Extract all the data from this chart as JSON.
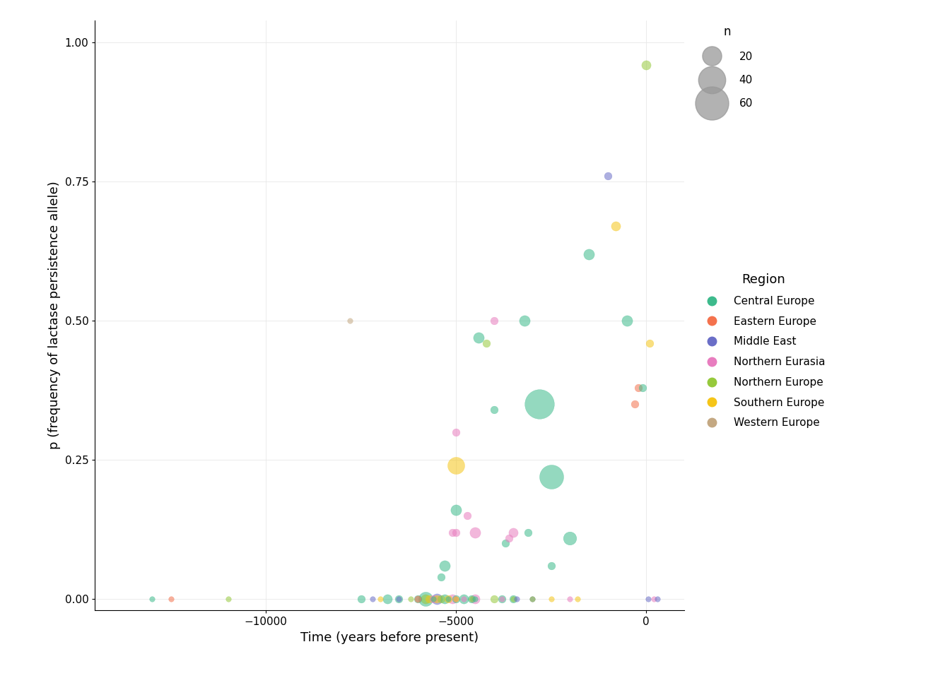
{
  "title": "",
  "xlabel": "Time (years before present)",
  "ylabel": "p (frequency of lactase persistence allele)",
  "xlim": [
    -14500,
    1000
  ],
  "ylim": [
    -0.02,
    1.04
  ],
  "xticks": [
    -10000,
    -5000,
    0
  ],
  "yticks": [
    0.0,
    0.25,
    0.5,
    0.75,
    1.0
  ],
  "regions": {
    "Central Europe": "#3dba8c",
    "Eastern Europe": "#f4724d",
    "Middle East": "#6a6ec7",
    "Northern Eurasia": "#e87dbf",
    "Northern Europe": "#96c93c",
    "Southern Europe": "#f5c518",
    "Western Europe": "#c4a882"
  },
  "points": [
    {
      "time": -13000,
      "p": 0.0,
      "n": 2,
      "region": "Central Europe"
    },
    {
      "time": -12500,
      "p": 0.0,
      "n": 2,
      "region": "Eastern Europe"
    },
    {
      "time": -11000,
      "p": 0.0,
      "n": 2,
      "region": "Northern Europe"
    },
    {
      "time": -7800,
      "p": 0.5,
      "n": 2,
      "region": "Western Europe"
    },
    {
      "time": -7500,
      "p": 0.0,
      "n": 4,
      "region": "Central Europe"
    },
    {
      "time": -7200,
      "p": 0.0,
      "n": 2,
      "region": "Middle East"
    },
    {
      "time": -7000,
      "p": 0.0,
      "n": 2,
      "region": "Southern Europe"
    },
    {
      "time": -6800,
      "p": 0.0,
      "n": 6,
      "region": "Central Europe"
    },
    {
      "time": -6500,
      "p": 0.0,
      "n": 4,
      "region": "Central Europe"
    },
    {
      "time": -6500,
      "p": 0.0,
      "n": 2,
      "region": "Middle East"
    },
    {
      "time": -6200,
      "p": 0.0,
      "n": 2,
      "region": "Northern Europe"
    },
    {
      "time": -6000,
      "p": 0.0,
      "n": 4,
      "region": "Central Europe"
    },
    {
      "time": -6000,
      "p": 0.0,
      "n": 3,
      "region": "Eastern Europe"
    },
    {
      "time": -5800,
      "p": 0.0,
      "n": 14,
      "region": "Central Europe"
    },
    {
      "time": -5800,
      "p": 0.0,
      "n": 6,
      "region": "Northern Europe"
    },
    {
      "time": -5700,
      "p": 0.0,
      "n": 4,
      "region": "Southern Europe"
    },
    {
      "time": -5600,
      "p": 0.0,
      "n": 4,
      "region": "Northern Eurasia"
    },
    {
      "time": -5600,
      "p": 0.0,
      "n": 2,
      "region": "Central Europe"
    },
    {
      "time": -5500,
      "p": 0.0,
      "n": 8,
      "region": "Middle East"
    },
    {
      "time": -5500,
      "p": 0.0,
      "n": 4,
      "region": "Southern Europe"
    },
    {
      "time": -5400,
      "p": 0.04,
      "n": 4,
      "region": "Central Europe"
    },
    {
      "time": -5400,
      "p": 0.0,
      "n": 4,
      "region": "Northern Europe"
    },
    {
      "time": -5300,
      "p": 0.0,
      "n": 6,
      "region": "Central Europe"
    },
    {
      "time": -5300,
      "p": 0.06,
      "n": 8,
      "region": "Central Europe"
    },
    {
      "time": -5200,
      "p": 0.0,
      "n": 4,
      "region": "Southern Europe"
    },
    {
      "time": -5200,
      "p": 0.0,
      "n": 2,
      "region": "Central Europe"
    },
    {
      "time": -5100,
      "p": 0.12,
      "n": 4,
      "region": "Northern Eurasia"
    },
    {
      "time": -5100,
      "p": 0.0,
      "n": 6,
      "region": "Northern Eurasia"
    },
    {
      "time": -5000,
      "p": 0.3,
      "n": 4,
      "region": "Northern Eurasia"
    },
    {
      "time": -5000,
      "p": 0.12,
      "n": 4,
      "region": "Northern Eurasia"
    },
    {
      "time": -5000,
      "p": 0.16,
      "n": 8,
      "region": "Central Europe"
    },
    {
      "time": -5000,
      "p": 0.0,
      "n": 4,
      "region": "Central Europe"
    },
    {
      "time": -5000,
      "p": 0.24,
      "n": 20,
      "region": "Southern Europe"
    },
    {
      "time": -5000,
      "p": 0.0,
      "n": 2,
      "region": "Northern Eurasia"
    },
    {
      "time": -5000,
      "p": 0.0,
      "n": 2,
      "region": "Southern Europe"
    },
    {
      "time": -4800,
      "p": 0.0,
      "n": 6,
      "region": "Central Europe"
    },
    {
      "time": -4800,
      "p": 0.0,
      "n": 2,
      "region": "Northern Eurasia"
    },
    {
      "time": -4700,
      "p": 0.15,
      "n": 4,
      "region": "Northern Eurasia"
    },
    {
      "time": -4600,
      "p": 0.0,
      "n": 4,
      "region": "Central Europe"
    },
    {
      "time": -4600,
      "p": 0.0,
      "n": 2,
      "region": "Northern Europe"
    },
    {
      "time": -4500,
      "p": 0.0,
      "n": 2,
      "region": "Central Europe"
    },
    {
      "time": -4500,
      "p": 0.0,
      "n": 6,
      "region": "Northern Eurasia"
    },
    {
      "time": -4500,
      "p": 0.12,
      "n": 8,
      "region": "Northern Eurasia"
    },
    {
      "time": -4400,
      "p": 0.47,
      "n": 8,
      "region": "Central Europe"
    },
    {
      "time": -4200,
      "p": 0.46,
      "n": 4,
      "region": "Northern Europe"
    },
    {
      "time": -4000,
      "p": 0.5,
      "n": 4,
      "region": "Northern Eurasia"
    },
    {
      "time": -4000,
      "p": 0.34,
      "n": 4,
      "region": "Central Europe"
    },
    {
      "time": -4000,
      "p": 0.0,
      "n": 4,
      "region": "Northern Europe"
    },
    {
      "time": -3800,
      "p": 0.0,
      "n": 2,
      "region": "Northern Eurasia"
    },
    {
      "time": -3800,
      "p": 0.0,
      "n": 4,
      "region": "Central Europe"
    },
    {
      "time": -3700,
      "p": 0.1,
      "n": 4,
      "region": "Central Europe"
    },
    {
      "time": -3600,
      "p": 0.11,
      "n": 4,
      "region": "Northern Eurasia"
    },
    {
      "time": -3500,
      "p": 0.12,
      "n": 6,
      "region": "Northern Eurasia"
    },
    {
      "time": -3500,
      "p": 0.0,
      "n": 2,
      "region": "Northern Europe"
    },
    {
      "time": -3500,
      "p": 0.0,
      "n": 4,
      "region": "Central Europe"
    },
    {
      "time": -3400,
      "p": 0.0,
      "n": 2,
      "region": "Middle East"
    },
    {
      "time": -3200,
      "p": 0.5,
      "n": 8,
      "region": "Central Europe"
    },
    {
      "time": -3100,
      "p": 0.12,
      "n": 4,
      "region": "Central Europe"
    },
    {
      "time": -3000,
      "p": 0.0,
      "n": 2,
      "region": "Middle East"
    },
    {
      "time": -3000,
      "p": 0.0,
      "n": 2,
      "region": "Northern Europe"
    },
    {
      "time": -2800,
      "p": 0.35,
      "n": 60,
      "region": "Central Europe"
    },
    {
      "time": -2500,
      "p": 0.22,
      "n": 40,
      "region": "Central Europe"
    },
    {
      "time": -2500,
      "p": 0.0,
      "n": 2,
      "region": "Southern Europe"
    },
    {
      "time": -2500,
      "p": 0.06,
      "n": 4,
      "region": "Central Europe"
    },
    {
      "time": -2000,
      "p": 0.11,
      "n": 12,
      "region": "Central Europe"
    },
    {
      "time": -2000,
      "p": 0.0,
      "n": 2,
      "region": "Northern Eurasia"
    },
    {
      "time": -1800,
      "p": 0.0,
      "n": 2,
      "region": "Southern Europe"
    },
    {
      "time": -1500,
      "p": 0.62,
      "n": 8,
      "region": "Central Europe"
    },
    {
      "time": -1000,
      "p": 0.76,
      "n": 4,
      "region": "Middle East"
    },
    {
      "time": -800,
      "p": 0.67,
      "n": 6,
      "region": "Southern Europe"
    },
    {
      "time": -500,
      "p": 0.5,
      "n": 8,
      "region": "Central Europe"
    },
    {
      "time": -300,
      "p": 0.35,
      "n": 4,
      "region": "Eastern Europe"
    },
    {
      "time": -200,
      "p": 0.38,
      "n": 4,
      "region": "Eastern Europe"
    },
    {
      "time": -100,
      "p": 0.38,
      "n": 4,
      "region": "Central Europe"
    },
    {
      "time": 0,
      "p": 0.96,
      "n": 6,
      "region": "Northern Europe"
    },
    {
      "time": 100,
      "p": 0.46,
      "n": 4,
      "region": "Southern Europe"
    },
    {
      "time": 50,
      "p": 0.0,
      "n": 2,
      "region": "Middle East"
    },
    {
      "time": 200,
      "p": 0.0,
      "n": 2,
      "region": "Northern Eurasia"
    },
    {
      "time": 300,
      "p": 0.0,
      "n": 2,
      "region": "Middle East"
    }
  ],
  "size_legend_n": [
    20,
    40,
    60
  ],
  "base_size": 30
}
